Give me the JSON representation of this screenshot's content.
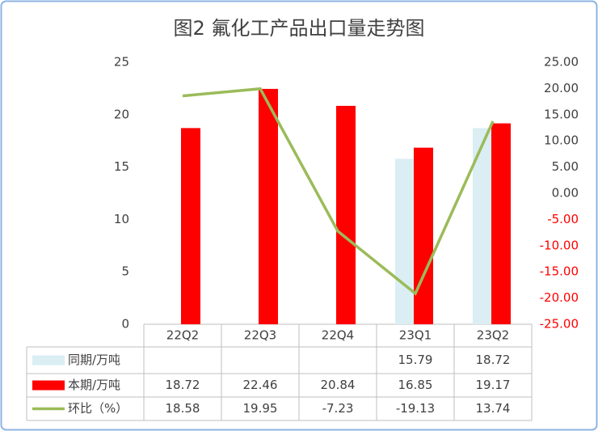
{
  "chart_data": {
    "type": "bar",
    "title": "图2  氟化工产品出口量走势图",
    "categories": [
      "22Q2",
      "22Q3",
      "22Q4",
      "23Q1",
      "23Q2"
    ],
    "series": [
      {
        "name": "同期/万吨",
        "color": "#daeef3",
        "type": "bar",
        "values": [
          null,
          null,
          null,
          15.79,
          18.72
        ]
      },
      {
        "name": "本期/万吨",
        "color": "#ff0000",
        "type": "bar",
        "values": [
          18.72,
          22.46,
          20.84,
          16.85,
          19.17
        ]
      },
      {
        "name": "环比（%）",
        "color": "#9bbb59",
        "type": "line",
        "axis": "y2",
        "values": [
          18.58,
          19.95,
          -7.23,
          -19.13,
          13.74
        ]
      }
    ],
    "ylim": [
      0,
      25
    ],
    "yticks": [
      0,
      5,
      10,
      15,
      20,
      25
    ],
    "y2lim": [
      -25,
      25
    ],
    "y2ticks": [
      {
        "value": -25,
        "label": "-25.00"
      },
      {
        "value": -20,
        "label": "-20.00"
      },
      {
        "value": -15,
        "label": "-15.00"
      },
      {
        "value": -10,
        "label": "-10.00"
      },
      {
        "value": -5,
        "label": "-5.00"
      },
      {
        "value": 0,
        "label": "0.00"
      },
      {
        "value": 5,
        "label": "5.00"
      },
      {
        "value": 10,
        "label": "10.00"
      },
      {
        "value": 15,
        "label": "15.00"
      },
      {
        "value": 20,
        "label": "20.00"
      },
      {
        "value": 25,
        "label": "25.00"
      }
    ],
    "grid": false,
    "data_table": true
  }
}
